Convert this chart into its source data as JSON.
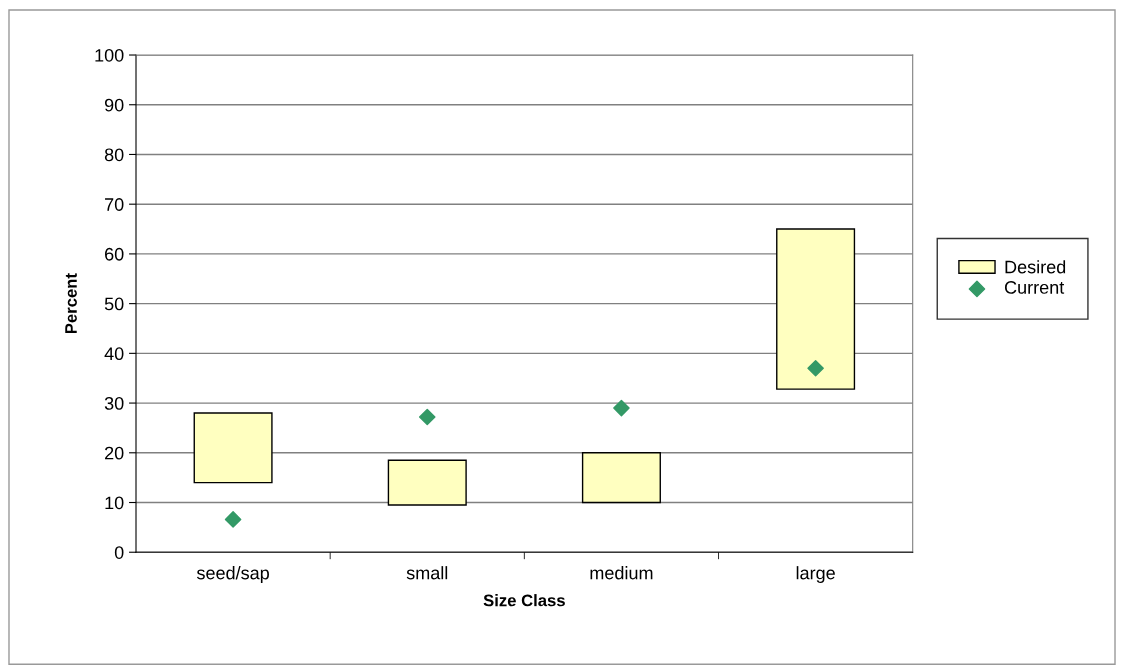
{
  "chart_data": {
    "type": "bar",
    "xlabel": "Size Class",
    "ylabel": "Percent",
    "categories": [
      "seed/sap",
      "small",
      "medium",
      "large"
    ],
    "series": [
      {
        "name": "Desired",
        "color": "#ffffc0",
        "base": [
          14,
          9.5,
          10,
          32.8
        ],
        "values": [
          14,
          9,
          10,
          32.2
        ]
      },
      {
        "name": "Current",
        "type": "scatter",
        "color": "#339966",
        "marker": "diamond",
        "values": [
          6.6,
          27.2,
          29,
          37
        ]
      }
    ],
    "ylim": [
      0,
      100
    ],
    "yticks": [
      0,
      10,
      20,
      30,
      40,
      50,
      60,
      70,
      80,
      90,
      100
    ],
    "grid": "y",
    "legend": "right"
  }
}
